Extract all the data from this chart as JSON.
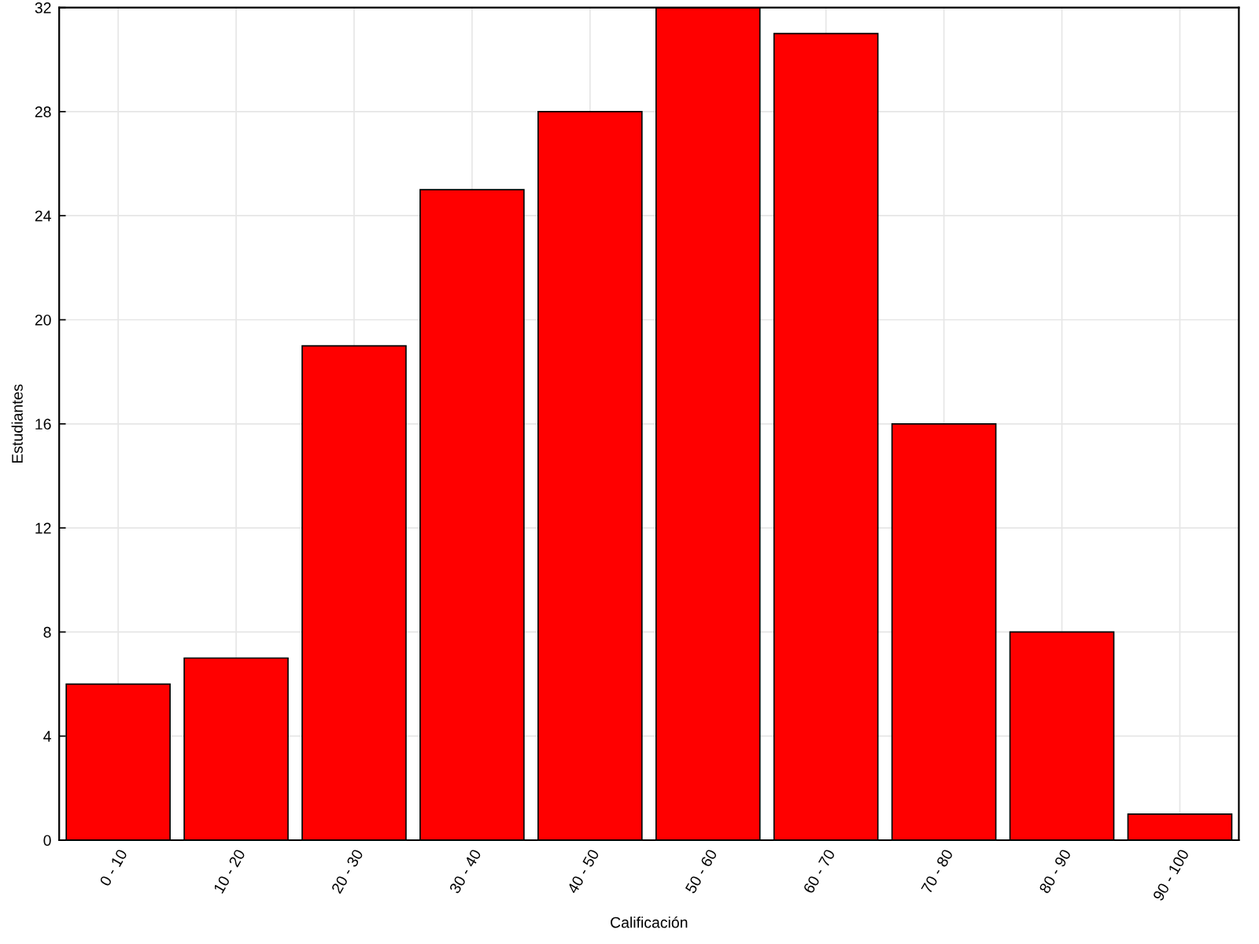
{
  "chart_data": {
    "type": "bar",
    "xlabel": "Calificación",
    "ylabel": "Estudiantes",
    "categories": [
      "0 - 10",
      "10 - 20",
      "20 - 30",
      "30 - 40",
      "40 - 50",
      "50 - 60",
      "60 - 70",
      "70 - 80",
      "80 - 90",
      "90 - 100"
    ],
    "values": [
      6,
      7,
      19,
      25,
      28,
      32,
      31,
      16,
      8,
      1
    ],
    "color": "#ff0000",
    "ylim": [
      0,
      32
    ],
    "yticks": [
      0,
      4,
      8,
      12,
      16,
      20,
      24,
      28,
      32
    ],
    "grid": true
  }
}
